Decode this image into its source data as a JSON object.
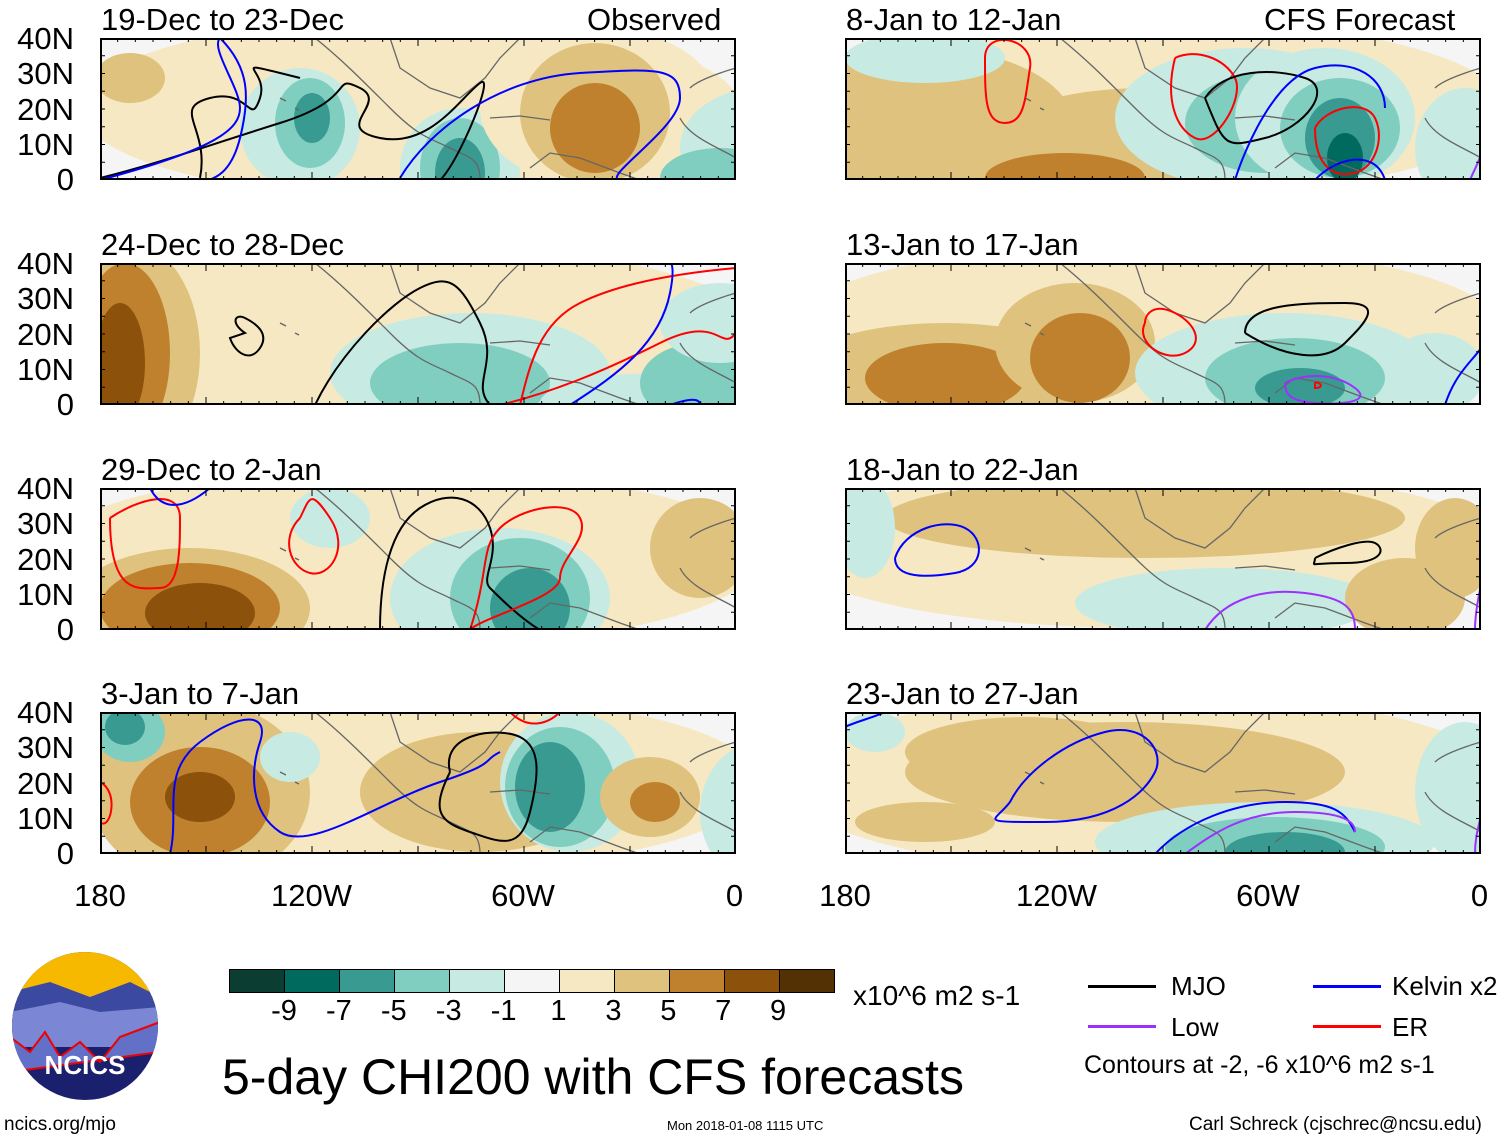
{
  "header": {
    "left_label": "Observed",
    "right_label": "CFS Forecast"
  },
  "panels": [
    {
      "title": "19-Dec to 23-Dec"
    },
    {
      "title": "24-Dec to 28-Dec"
    },
    {
      "title": "29-Dec to 2-Jan"
    },
    {
      "title": "3-Jan to 7-Jan"
    },
    {
      "title": "8-Jan to 12-Jan"
    },
    {
      "title": "13-Jan to 17-Jan"
    },
    {
      "title": "18-Jan to 22-Jan"
    },
    {
      "title": "23-Jan to 27-Jan"
    }
  ],
  "lat_labels": [
    "40N",
    "30N",
    "20N",
    "10N",
    "0"
  ],
  "lon_labels": [
    "180",
    "120W",
    "60W",
    "0"
  ],
  "colorbar": {
    "labels": [
      "-9",
      "-7",
      "-5",
      "-3",
      "-1",
      "1",
      "3",
      "5",
      "7",
      "9"
    ],
    "colors": [
      "#0b3d33",
      "#016a5e",
      "#389a90",
      "#80cec0",
      "#c7eae3",
      "#f5f5f5",
      "#f6e8c3",
      "#dfc27d",
      "#bf812d",
      "#8c510a",
      "#543005"
    ],
    "units": "x10^6 m2 s-1"
  },
  "legend": {
    "items": [
      {
        "label": "MJO",
        "color": "#000000"
      },
      {
        "label": "Kelvin x2",
        "color": "#0000ff"
      },
      {
        "label": "Low",
        "color": "#9b30ff"
      },
      {
        "label": "ER",
        "color": "#ff0000"
      }
    ],
    "note": "Contours at -2, -6 x10^6 m2 s-1"
  },
  "chart_data": {
    "type": "heatmap",
    "title": "5-day CHI200 with CFS forecasts",
    "variable": "CHI200",
    "units": "x10^6 m2 s-1",
    "xrange": [
      "180",
      "0"
    ],
    "yrange": [
      "0",
      "40N"
    ],
    "contour_levels": [
      -2,
      -6
    ]
  },
  "footer": {
    "logo_text": "NCICS",
    "url": "ncics.org/mjo",
    "timestamp": "Mon 2018-01-08 1115 UTC",
    "credit": "Carl Schreck (cjschrec@ncsu.edu)"
  }
}
